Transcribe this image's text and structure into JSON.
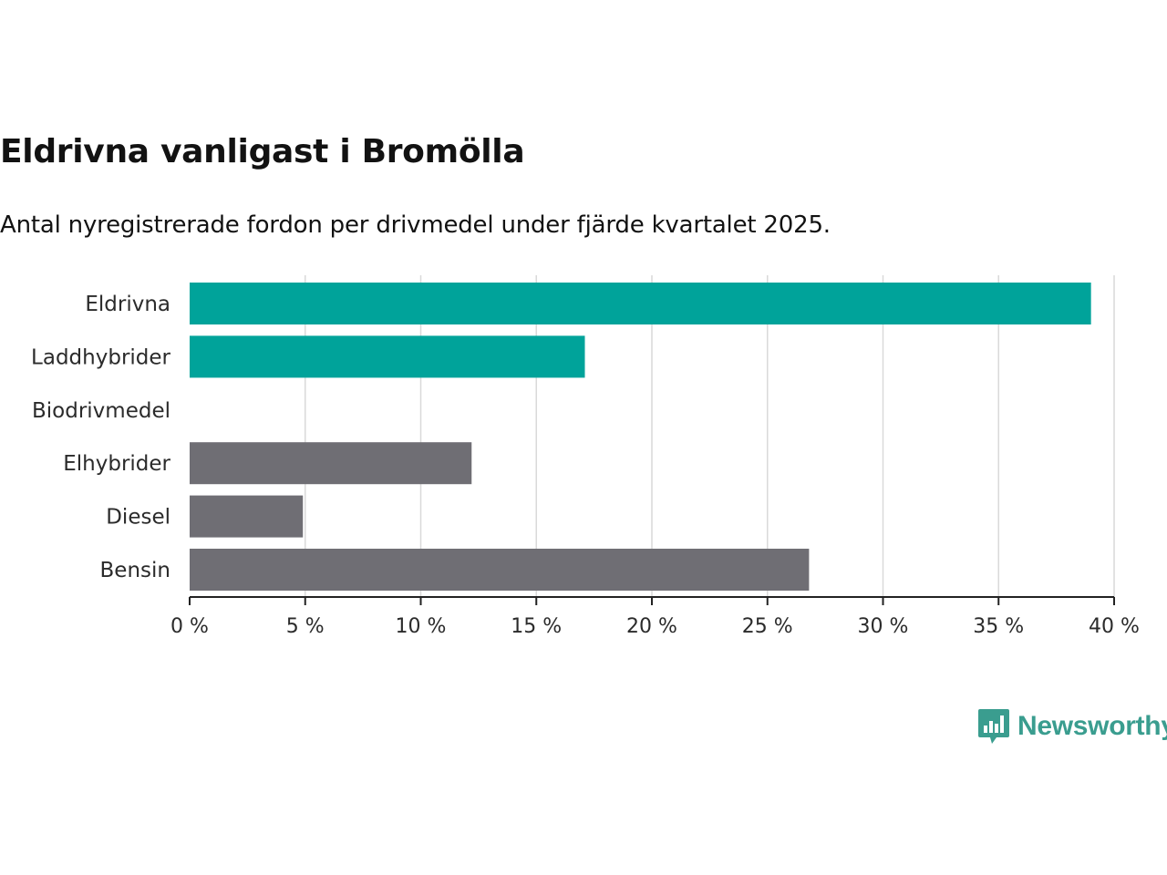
{
  "header": {
    "title": "Eldrivna vanligast i Bromölla",
    "subtitle": "Antal nyregistrerade fordon per drivmedel under fjärde kvartalet 2025."
  },
  "branding": {
    "logo_text": "Newsworthy",
    "logo_icon": "bar-chart-speech-bubble-icon"
  },
  "colors": {
    "highlight": "#00a39a",
    "neutral": "#6f6e74",
    "grid": "#d9d9d9",
    "axis": "#222222",
    "brand": "#3a9d8f"
  },
  "chart_data": {
    "type": "bar",
    "orientation": "horizontal",
    "categories": [
      "Eldrivna",
      "Laddhybrider",
      "Biodrivmedel",
      "Elhybrider",
      "Diesel",
      "Bensin"
    ],
    "values": [
      39.0,
      17.1,
      0,
      12.2,
      4.9,
      26.8
    ],
    "highlighted": [
      true,
      true,
      true,
      false,
      false,
      false
    ],
    "unit": "%",
    "xlim": [
      0,
      40
    ],
    "xticks": [
      0,
      5,
      10,
      15,
      20,
      25,
      30,
      35,
      40
    ],
    "xtick_labels": [
      "0 %",
      "5 %",
      "10 %",
      "15 %",
      "20 %",
      "25 %",
      "30 %",
      "35 %",
      "40 %"
    ],
    "title": "Eldrivna vanligast i Bromölla",
    "xlabel": "",
    "ylabel": "",
    "grid": "vertical"
  }
}
